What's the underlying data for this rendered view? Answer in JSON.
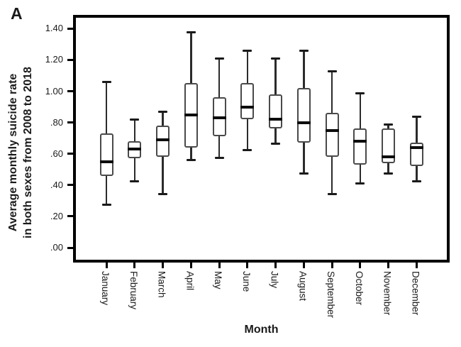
{
  "panel_label": "A",
  "y_axis": {
    "title_line1": "Average monthly suicide rate",
    "title_line2": "in both sexes from 2008 to 2018",
    "ticks": [
      {
        "value": 1.4,
        "label": "1.40"
      },
      {
        "value": 1.2,
        "label": "1.20"
      },
      {
        "value": 1.0,
        "label": "1.00"
      },
      {
        "value": 0.8,
        "label": ".80"
      },
      {
        "value": 0.6,
        "label": ".60"
      },
      {
        "value": 0.4,
        "label": ".40"
      },
      {
        "value": 0.2,
        "label": ".20"
      },
      {
        "value": 0.0,
        "label": ".00"
      }
    ]
  },
  "x_axis": {
    "title": "Month"
  },
  "chart_data": {
    "type": "boxplot",
    "title": "",
    "xlabel": "Month",
    "ylabel": "Average monthly suicide rate in both sexes from 2008 to 2018",
    "ylim": [
      0.0,
      1.4
    ],
    "y_tick_step": 0.2,
    "grid": false,
    "legend": false,
    "categories": [
      "January",
      "February",
      "March",
      "April",
      "May",
      "June",
      "July",
      "August",
      "September",
      "October",
      "November",
      "December"
    ],
    "series": [
      {
        "name": "Average monthly suicide rate in both sexes, 2008-2018",
        "boxes": [
          {
            "category": "January",
            "min": 0.27,
            "q1": 0.46,
            "median": 0.55,
            "q3": 0.73,
            "max": 1.06
          },
          {
            "category": "February",
            "min": 0.42,
            "q1": 0.57,
            "median": 0.63,
            "q3": 0.68,
            "max": 0.82
          },
          {
            "category": "March",
            "min": 0.34,
            "q1": 0.58,
            "median": 0.69,
            "q3": 0.78,
            "max": 0.87
          },
          {
            "category": "April",
            "min": 0.56,
            "q1": 0.64,
            "median": 0.85,
            "q3": 1.05,
            "max": 1.38
          },
          {
            "category": "May",
            "min": 0.57,
            "q1": 0.71,
            "median": 0.83,
            "q3": 0.96,
            "max": 1.21
          },
          {
            "category": "June",
            "min": 0.62,
            "q1": 0.82,
            "median": 0.9,
            "q3": 1.05,
            "max": 1.26
          },
          {
            "category": "July",
            "min": 0.66,
            "q1": 0.76,
            "median": 0.82,
            "q3": 0.98,
            "max": 1.21
          },
          {
            "category": "August",
            "min": 0.47,
            "q1": 0.67,
            "median": 0.8,
            "q3": 1.02,
            "max": 1.26
          },
          {
            "category": "September",
            "min": 0.34,
            "q1": 0.58,
            "median": 0.75,
            "q3": 0.86,
            "max": 1.13
          },
          {
            "category": "October",
            "min": 0.41,
            "q1": 0.53,
            "median": 0.68,
            "q3": 0.76,
            "max": 0.99
          },
          {
            "category": "November",
            "min": 0.47,
            "q1": 0.54,
            "median": 0.58,
            "q3": 0.76,
            "max": 0.79
          },
          {
            "category": "December",
            "min": 0.42,
            "q1": 0.52,
            "median": 0.64,
            "q3": 0.67,
            "max": 0.84
          }
        ]
      }
    ]
  },
  "colors": {
    "frame": "#000000",
    "box_border": "#4a4a4a",
    "box_fill": "#ffffff",
    "median": "#0d0d0d",
    "whisker": "#2b2b2b",
    "text": "#1a1a1a",
    "background": "#ffffff"
  }
}
